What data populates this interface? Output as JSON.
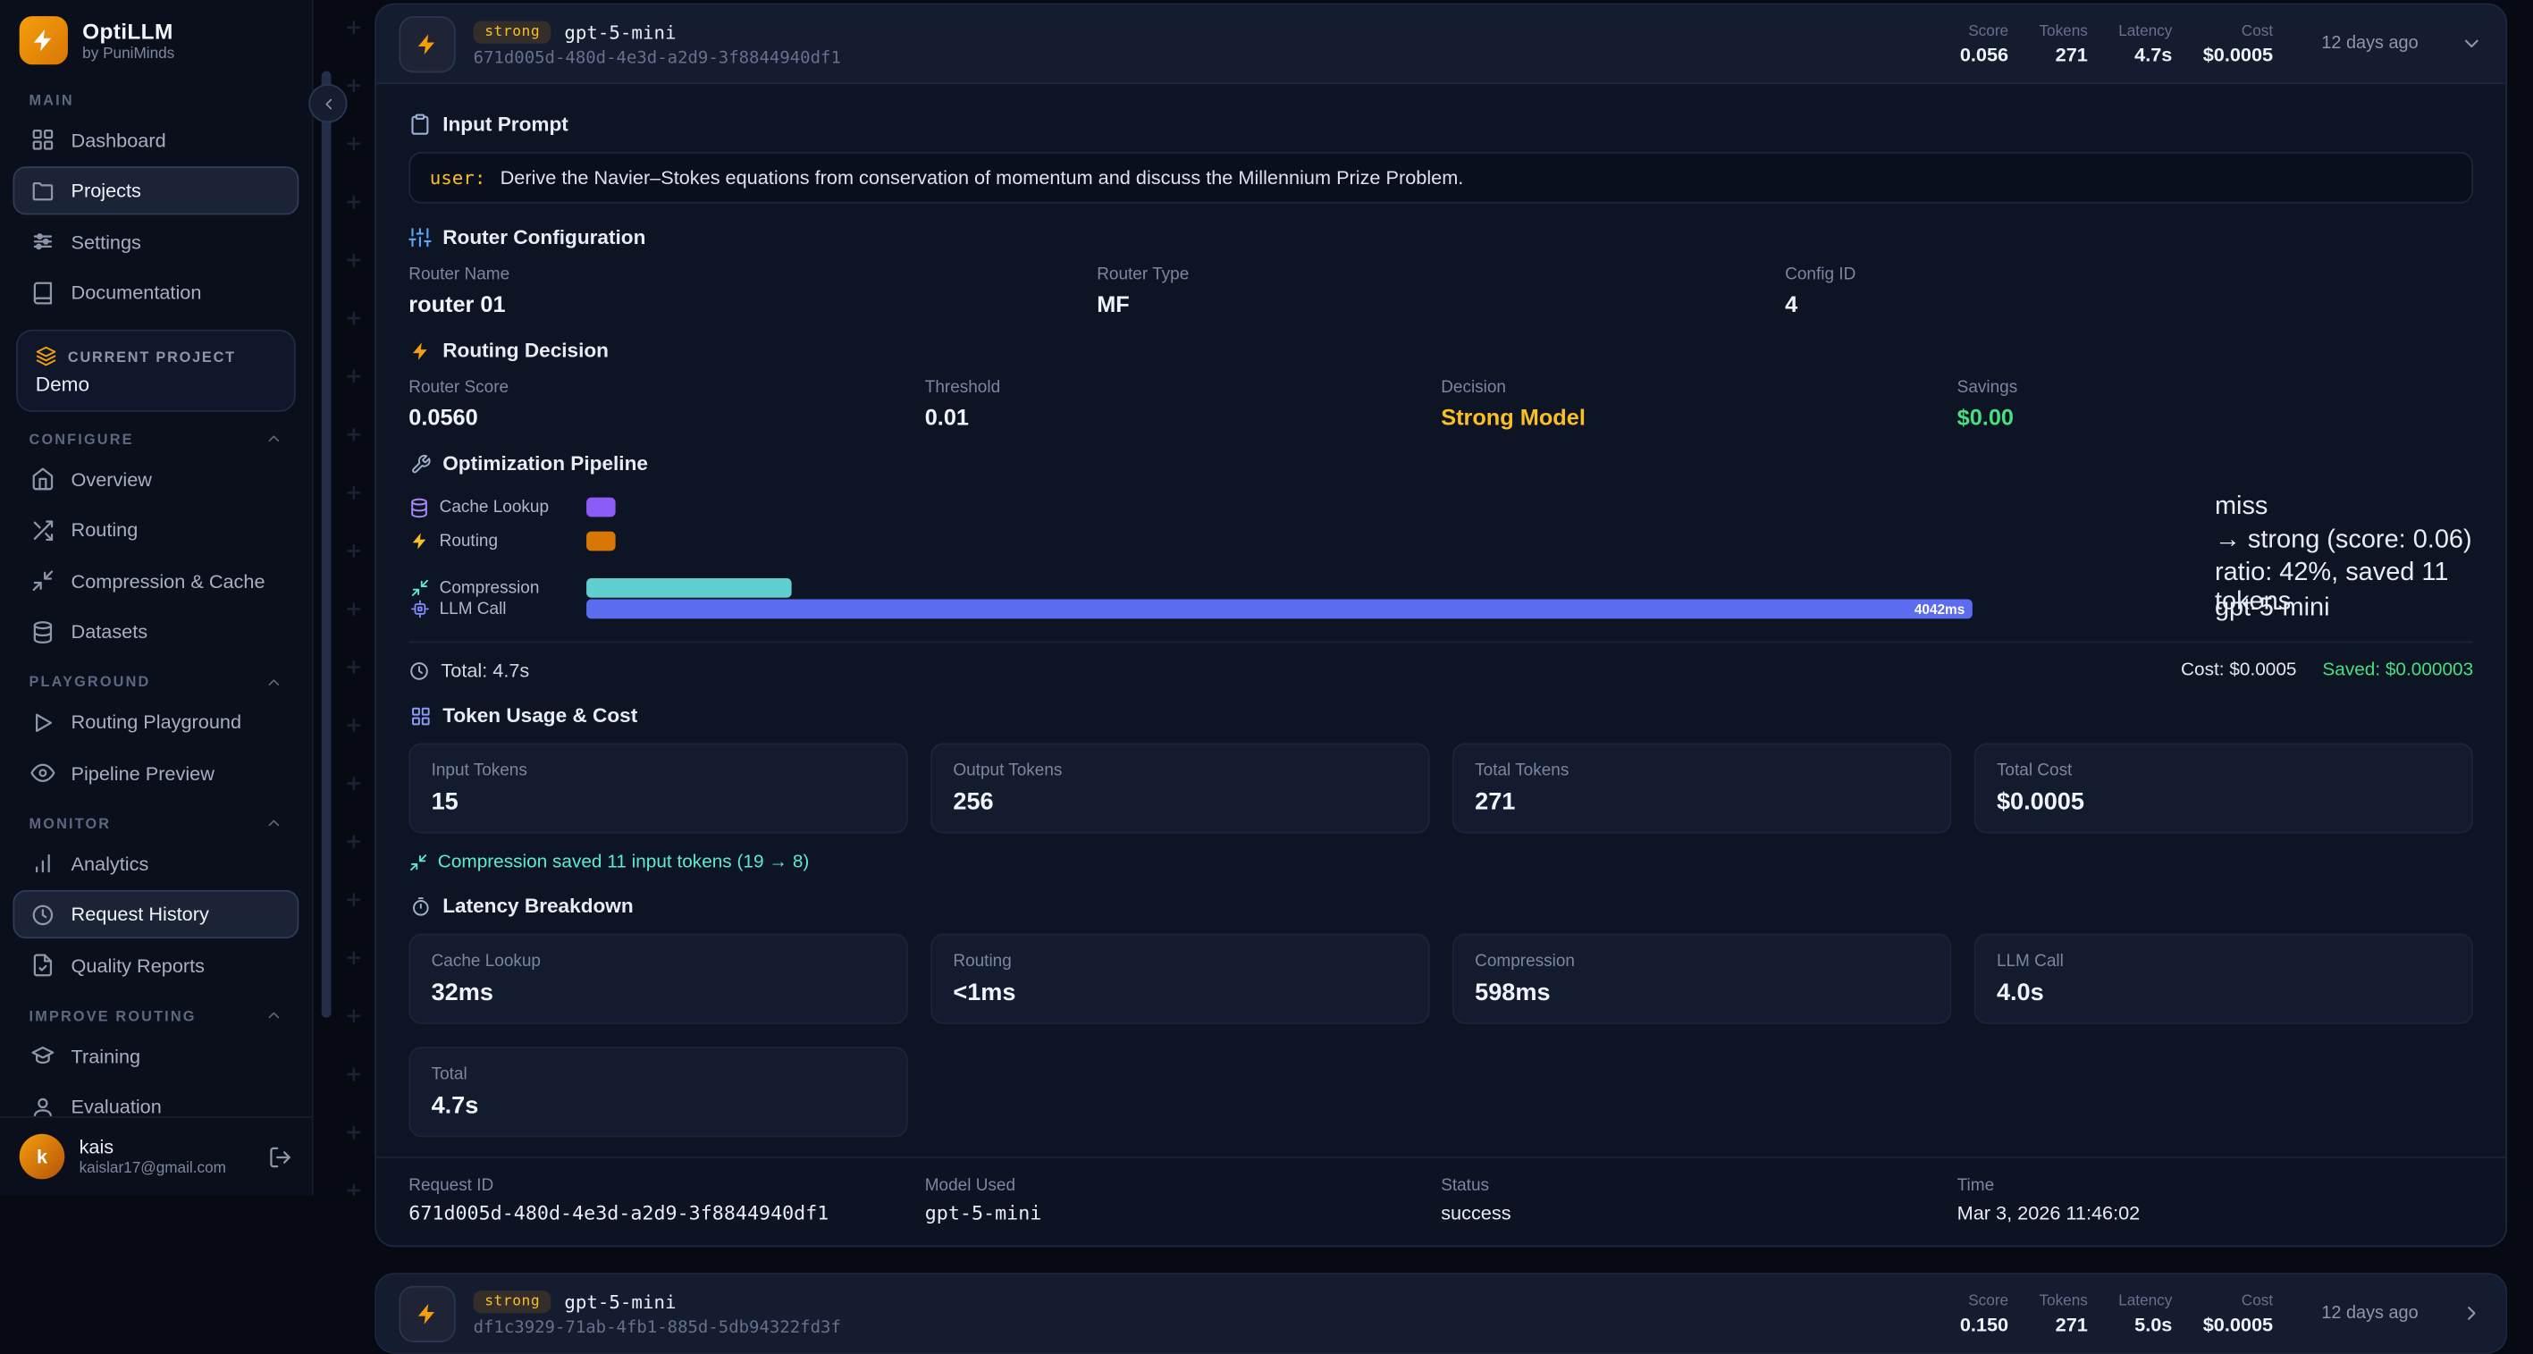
{
  "app": {
    "title": "OptiLLM",
    "subtitle": "by PuniMinds"
  },
  "colors": {
    "accent_orange": "#f59e0b",
    "badge_text": "#fbbf24",
    "success_green": "#4ade80",
    "cache_purple": "#8b5cf6",
    "routing_amber": "#d97706",
    "compression_teal": "#5fd0cf",
    "llm_blue": "#5b6cf0",
    "latency_blue": "#60a5fa"
  },
  "sidebar": {
    "sections": [
      {
        "label": "MAIN",
        "items": [
          {
            "label": "Dashboard"
          },
          {
            "label": "Projects"
          },
          {
            "label": "Settings"
          },
          {
            "label": "Documentation"
          }
        ]
      },
      {
        "label": "CONFIGURE",
        "items": [
          {
            "label": "Overview"
          },
          {
            "label": "Routing"
          },
          {
            "label": "Compression & Cache"
          },
          {
            "label": "Datasets"
          }
        ]
      },
      {
        "label": "PLAYGROUND",
        "items": [
          {
            "label": "Routing Playground"
          },
          {
            "label": "Pipeline Preview"
          }
        ]
      },
      {
        "label": "MONITOR",
        "items": [
          {
            "label": "Analytics"
          },
          {
            "label": "Request History"
          },
          {
            "label": "Quality Reports"
          }
        ]
      },
      {
        "label": "IMPROVE ROUTING",
        "items": [
          {
            "label": "Training"
          },
          {
            "label": "Evaluation"
          }
        ]
      }
    ],
    "current_project_label": "CURRENT PROJECT",
    "current_project_name": "Demo",
    "user": {
      "initial": "k",
      "name": "kais",
      "email": "kaislar17@gmail.com"
    }
  },
  "request": {
    "tier_badge": "strong",
    "model": "gpt-5-mini",
    "request_id": "671d005d-480d-4e3d-a2d9-3f8844940df1",
    "header_metrics": [
      {
        "label": "Score",
        "value": "0.056"
      },
      {
        "label": "Tokens",
        "value": "271"
      },
      {
        "label": "Latency",
        "value": "4.7s"
      },
      {
        "label": "Cost",
        "value": "$0.0005"
      }
    ],
    "age": "12 days ago",
    "prompt_title": "Input Prompt",
    "prompt_role": "user:",
    "prompt_text": "Derive the Navier–Stokes equations from conservation of momentum and discuss the Millennium Prize Problem.",
    "router_config_title": "Router Configuration",
    "router_config": [
      {
        "label": "Router Name",
        "value": "router 01"
      },
      {
        "label": "Router Type",
        "value": "MF"
      },
      {
        "label": "Config ID",
        "value": "4"
      }
    ],
    "routing_decision_title": "Routing Decision",
    "routing_decision": [
      {
        "label": "Router Score",
        "value": "0.0560"
      },
      {
        "label": "Threshold",
        "value": "0.01"
      },
      {
        "label": "Decision",
        "value": "Strong Model"
      },
      {
        "label": "Savings",
        "value": "$0.00"
      }
    ],
    "pipeline_title": "Optimization Pipeline",
    "pipeline": [
      {
        "label": "Cache Lookup",
        "note": "miss",
        "width_pct": 1.8
      },
      {
        "label": "Routing",
        "note": "→ strong (score: 0.06)",
        "width_pct": 1.8
      },
      {
        "label": "Compression",
        "note": "ratio: 42%, saved 11 tokens",
        "width_pct": 12.7
      },
      {
        "label": "LLM Call",
        "note": "gpt-5-mini",
        "width_pct": 86,
        "bar_label": "4042ms"
      }
    ],
    "pipeline_total": "Total: 4.7s",
    "pipeline_cost": "Cost: $0.0005",
    "pipeline_saved": "Saved: $0.000003",
    "tokens_title": "Token Usage & Cost",
    "token_stats": [
      {
        "label": "Input Tokens",
        "value": "15"
      },
      {
        "label": "Output Tokens",
        "value": "256"
      },
      {
        "label": "Total Tokens",
        "value": "271"
      },
      {
        "label": "Total Cost",
        "value": "$0.0005"
      }
    ],
    "compression_note": "Compression saved 11 input tokens (19 → 8)",
    "latency_title": "Latency Breakdown",
    "latency_stats": [
      {
        "label": "Cache Lookup",
        "value": "32ms"
      },
      {
        "label": "Routing",
        "value": "<1ms"
      },
      {
        "label": "Compression",
        "value": "598ms"
      },
      {
        "label": "LLM Call",
        "value": "4.0s"
      },
      {
        "label": "Total",
        "value": "4.7s"
      }
    ],
    "footer": [
      {
        "label": "Request ID",
        "value": "671d005d-480d-4e3d-a2d9-3f8844940df1"
      },
      {
        "label": "Model Used",
        "value": "gpt-5-mini"
      },
      {
        "label": "Status",
        "value": "success"
      },
      {
        "label": "Time",
        "value": "Mar 3, 2026 11:46:02"
      }
    ]
  },
  "request2": {
    "tier_badge": "strong",
    "model": "gpt-5-mini",
    "request_id": "df1c3929-71ab-4fb1-885d-5db94322fd3f",
    "header_metrics": [
      {
        "label": "Score",
        "value": "0.150"
      },
      {
        "label": "Tokens",
        "value": "271"
      },
      {
        "label": "Latency",
        "value": "5.0s"
      },
      {
        "label": "Cost",
        "value": "$0.0005"
      }
    ],
    "age": "12 days ago"
  }
}
